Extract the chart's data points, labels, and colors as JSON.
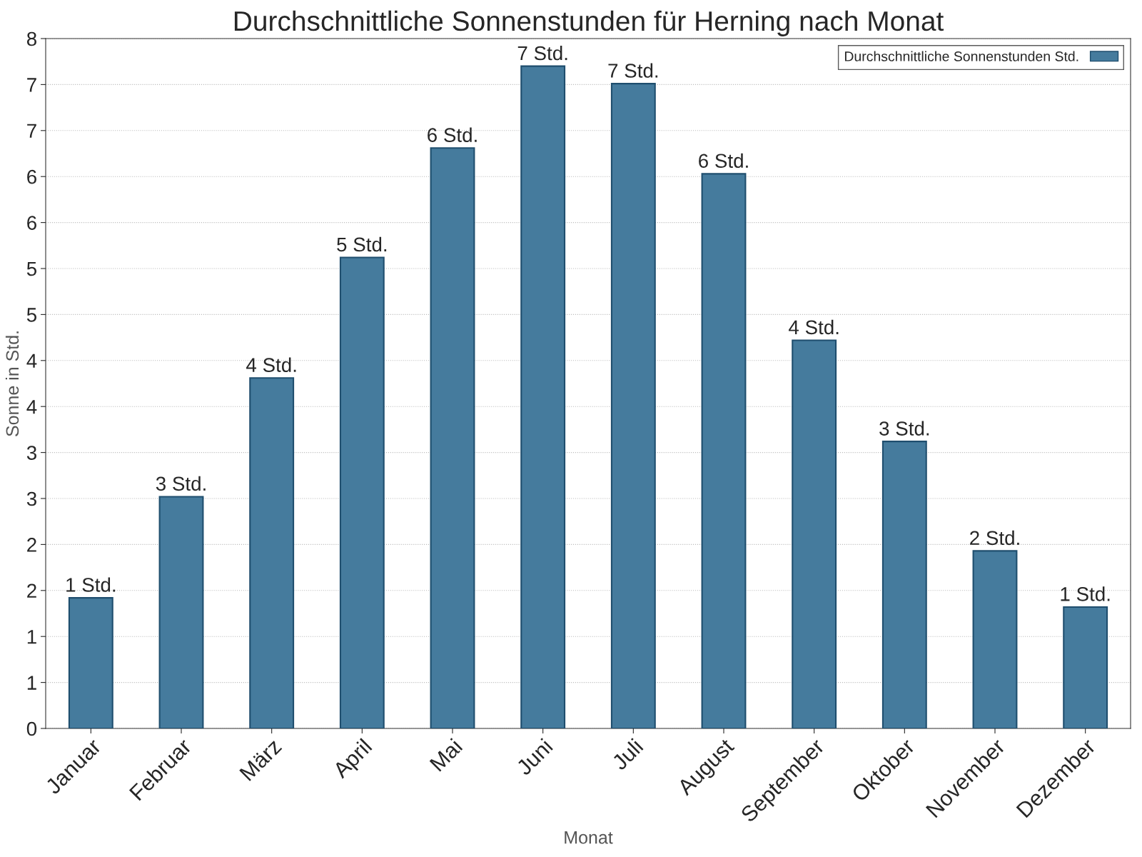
{
  "chart_data": {
    "type": "bar",
    "title": "Durchschnittliche Sonnenstunden für Herning nach Monat",
    "xlabel": "Monat",
    "ylabel": "Sonne in Std.",
    "categories": [
      "Januar",
      "Februar",
      "März",
      "April",
      "Mai",
      "Juni",
      "Juli",
      "August",
      "September",
      "Oktober",
      "November",
      "Dezember"
    ],
    "series": [
      {
        "name": "Durchschnittliche Sonnenstunden Std.",
        "color": "#457b9d",
        "values": [
          1.42,
          2.52,
          3.81,
          5.12,
          6.31,
          7.2,
          7.01,
          6.03,
          4.22,
          3.12,
          1.93,
          1.32
        ],
        "value_labels": [
          "1 Std.",
          "3 Std.",
          "4 Std.",
          "5 Std.",
          "6 Std.",
          "7 Std.",
          "7 Std.",
          "6 Std.",
          "4 Std.",
          "3 Std.",
          "2 Std.",
          "1 Std."
        ]
      }
    ],
    "ylim": [
      0,
      7.5
    ],
    "yticks": [
      0,
      {
        "value": 0.5,
        "label": "1"
      },
      {
        "value": 1,
        "label": "1"
      },
      {
        "value": 1.5,
        "label": "2"
      },
      {
        "value": 2,
        "label": "2"
      },
      {
        "value": 2.5,
        "label": "3"
      },
      {
        "value": 3,
        "label": "3"
      },
      {
        "value": 3.5,
        "label": "4"
      },
      {
        "value": 4,
        "label": "4"
      },
      {
        "value": 4.5,
        "label": "5"
      },
      {
        "value": 5,
        "label": "5"
      },
      {
        "value": 5.5,
        "label": "6"
      },
      {
        "value": 6,
        "label": "6"
      },
      {
        "value": 6.5,
        "label": "7"
      },
      {
        "value": 7,
        "label": "7"
      },
      {
        "value": 7.5,
        "label": "8"
      }
    ],
    "grid": "y",
    "legend": "top right"
  }
}
